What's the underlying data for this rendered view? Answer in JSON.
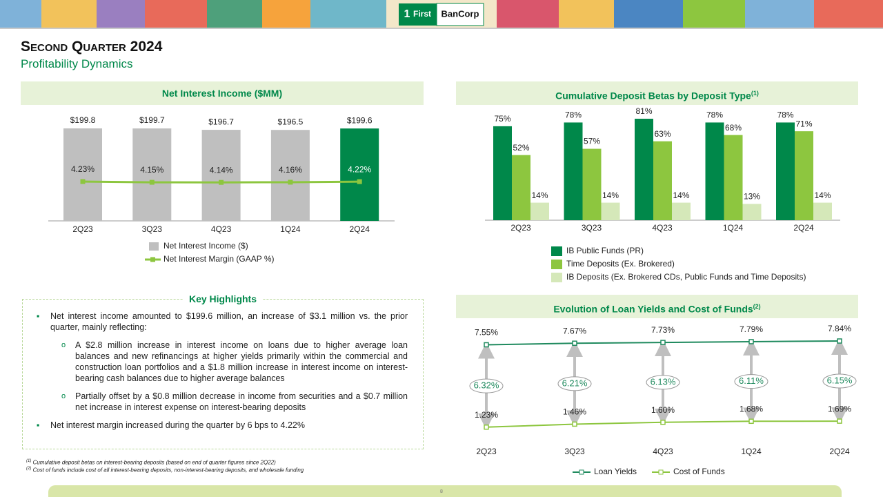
{
  "header": {
    "logo_number": "1",
    "logo_first": "First",
    "logo_name": "BanCorp",
    "title": "Second Quarter 2024",
    "subtitle": "Profitability Dynamics"
  },
  "chart_data": [
    {
      "type": "bar_line",
      "title": "Net Interest Income ($MM)",
      "categories": [
        "2Q23",
        "3Q23",
        "4Q23",
        "1Q24",
        "2Q24"
      ],
      "series": [
        {
          "name": "Net Interest Income ($)",
          "type": "bar",
          "colors": [
            "#bfbfbf",
            "#bfbfbf",
            "#bfbfbf",
            "#bfbfbf",
            "#00884a"
          ],
          "values": [
            199.8,
            199.7,
            196.7,
            196.5,
            199.6
          ],
          "value_labels": [
            "$199.8",
            "$199.7",
            "$196.7",
            "$196.5",
            "$199.6"
          ]
        },
        {
          "name": "Net Interest Margin (GAAP %)",
          "type": "line",
          "color": "#8dc63f",
          "values": [
            4.23,
            4.15,
            4.14,
            4.16,
            4.22
          ],
          "value_labels": [
            "4.23%",
            "4.15%",
            "4.14%",
            "4.16%",
            "4.22%"
          ]
        }
      ]
    },
    {
      "type": "bar",
      "title": "Cumulative Deposit Betas by Deposit Type",
      "title_note": "(1)",
      "categories": [
        "2Q23",
        "3Q23",
        "4Q23",
        "1Q24",
        "2Q24"
      ],
      "series": [
        {
          "name": "IB Public Funds (PR)",
          "color": "#00884a",
          "values": [
            75,
            78,
            81,
            78,
            78
          ],
          "value_labels": [
            "75%",
            "78%",
            "81%",
            "78%",
            "78%"
          ]
        },
        {
          "name": "Time Deposits (Ex. Brokered)",
          "color": "#8dc63f",
          "values": [
            52,
            57,
            63,
            68,
            71
          ],
          "value_labels": [
            "52%",
            "57%",
            "63%",
            "68%",
            "71%"
          ]
        },
        {
          "name": "IB Deposits (Ex. Brokered CDs, Public Funds and Time Deposits)",
          "color": "#d5e8b9",
          "values": [
            14,
            14,
            14,
            13,
            14
          ],
          "value_labels": [
            "14%",
            "14%",
            "14%",
            "13%",
            "14%"
          ]
        }
      ]
    },
    {
      "type": "line",
      "title": "Evolution of Loan Yields and Cost of Funds",
      "title_note": "(2)",
      "categories": [
        "2Q23",
        "3Q23",
        "4Q23",
        "1Q24",
        "2Q24"
      ],
      "series": [
        {
          "name": "Loan Yields",
          "color": "#1f8a5e",
          "values": [
            7.55,
            7.67,
            7.73,
            7.79,
            7.84
          ],
          "value_labels": [
            "7.55%",
            "7.67%",
            "7.73%",
            "7.79%",
            "7.84%"
          ]
        },
        {
          "name": "Cost of Funds",
          "color": "#8dc63f",
          "values": [
            1.23,
            1.46,
            1.6,
            1.68,
            1.69
          ],
          "value_labels": [
            "1.23%",
            "1.46%",
            "1.60%",
            "1.68%",
            "1.69%"
          ]
        }
      ],
      "spread": {
        "values": [
          6.32,
          6.21,
          6.13,
          6.11,
          6.15
        ],
        "value_labels": [
          "6.32%",
          "6.21%",
          "6.13%",
          "6.11%",
          "6.15%"
        ]
      }
    }
  ],
  "highlights": {
    "title": "Key Highlights",
    "items": [
      {
        "text": "Net interest income amounted to $199.6 million, an increase of $3.1 million vs. the prior quarter, mainly reflecting:",
        "subitems": [
          "A $2.8 million increase in interest income on loans due to higher average loan balances and new refinancings at higher yields primarily within the commercial and construction loan portfolios and a $1.8 million increase in interest income on interest-bearing cash balances due to higher average balances",
          "Partially offset by a $0.8 million decrease in income from securities and a $0.7 million net increase in interest expense on interest-bearing deposits"
        ]
      },
      {
        "text": "Net interest margin increased during the quarter by 6 bps to 4.22%"
      }
    ]
  },
  "footnotes": [
    {
      "marker": "(1)",
      "text": "Cumulative deposit betas on interest-bearing deposits (based on end of quarter figures since 2Q22)"
    },
    {
      "marker": "(2)",
      "text": "Cost of funds include cost of all interest-bearing deposits, non-interest-bearing deposits, and wholesale funding"
    }
  ],
  "page_number": "8"
}
